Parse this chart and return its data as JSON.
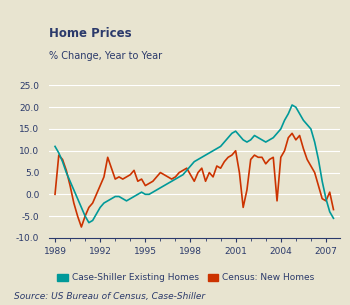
{
  "title": "Home Prices",
  "subtitle": "% Change, Year to Year",
  "source": "Source: US Bureau of Census, Case-Shiller",
  "background_color": "#e8e4d0",
  "title_color": "#2b3a6b",
  "axis_color": "#2b3a6b",
  "grid_color": "#ffffff",
  "ylim": [
    -10.0,
    25.0
  ],
  "yticks": [
    -10.0,
    -5.0,
    0.0,
    5.0,
    10.0,
    15.0,
    20.0,
    25.0
  ],
  "xtick_years": [
    1989,
    1992,
    1995,
    1998,
    2001,
    2004,
    2007
  ],
  "legend_labels": [
    "Case-Shiller Existing Homes",
    "Census: New Homes"
  ],
  "cs_color": "#009999",
  "census_color": "#cc3300",
  "cs_data": [
    [
      1989.0,
      11.0
    ],
    [
      1989.25,
      9.5
    ],
    [
      1989.5,
      7.5
    ],
    [
      1989.75,
      5.0
    ],
    [
      1990.0,
      3.0
    ],
    [
      1990.25,
      1.0
    ],
    [
      1990.5,
      -1.0
    ],
    [
      1990.75,
      -3.0
    ],
    [
      1991.0,
      -5.0
    ],
    [
      1991.25,
      -6.5
    ],
    [
      1991.5,
      -6.0
    ],
    [
      1991.75,
      -4.5
    ],
    [
      1992.0,
      -3.0
    ],
    [
      1992.25,
      -2.0
    ],
    [
      1992.5,
      -1.5
    ],
    [
      1992.75,
      -1.0
    ],
    [
      1993.0,
      -0.5
    ],
    [
      1993.25,
      -0.5
    ],
    [
      1993.5,
      -1.0
    ],
    [
      1993.75,
      -1.5
    ],
    [
      1994.0,
      -1.0
    ],
    [
      1994.25,
      -0.5
    ],
    [
      1994.5,
      0.0
    ],
    [
      1994.75,
      0.5
    ],
    [
      1995.0,
      0.0
    ],
    [
      1995.25,
      0.0
    ],
    [
      1995.5,
      0.5
    ],
    [
      1995.75,
      1.0
    ],
    [
      1996.0,
      1.5
    ],
    [
      1996.25,
      2.0
    ],
    [
      1996.5,
      2.5
    ],
    [
      1996.75,
      3.0
    ],
    [
      1997.0,
      3.5
    ],
    [
      1997.25,
      4.0
    ],
    [
      1997.5,
      4.5
    ],
    [
      1997.75,
      5.5
    ],
    [
      1998.0,
      6.5
    ],
    [
      1998.25,
      7.5
    ],
    [
      1998.5,
      8.0
    ],
    [
      1998.75,
      8.5
    ],
    [
      1999.0,
      9.0
    ],
    [
      1999.25,
      9.5
    ],
    [
      1999.5,
      10.0
    ],
    [
      1999.75,
      10.5
    ],
    [
      2000.0,
      11.0
    ],
    [
      2000.25,
      12.0
    ],
    [
      2000.5,
      13.0
    ],
    [
      2000.75,
      14.0
    ],
    [
      2001.0,
      14.5
    ],
    [
      2001.25,
      13.5
    ],
    [
      2001.5,
      12.5
    ],
    [
      2001.75,
      12.0
    ],
    [
      2002.0,
      12.5
    ],
    [
      2002.25,
      13.5
    ],
    [
      2002.5,
      13.0
    ],
    [
      2002.75,
      12.5
    ],
    [
      2003.0,
      12.0
    ],
    [
      2003.25,
      12.5
    ],
    [
      2003.5,
      13.0
    ],
    [
      2003.75,
      14.0
    ],
    [
      2004.0,
      15.0
    ],
    [
      2004.25,
      17.0
    ],
    [
      2004.5,
      18.5
    ],
    [
      2004.75,
      20.5
    ],
    [
      2005.0,
      20.0
    ],
    [
      2005.25,
      18.5
    ],
    [
      2005.5,
      17.0
    ],
    [
      2005.75,
      16.0
    ],
    [
      2006.0,
      15.0
    ],
    [
      2006.25,
      12.0
    ],
    [
      2006.5,
      8.0
    ],
    [
      2006.75,
      3.0
    ],
    [
      2007.0,
      -1.0
    ],
    [
      2007.25,
      -4.0
    ],
    [
      2007.5,
      -5.5
    ]
  ],
  "census_data": [
    [
      1989.0,
      0.0
    ],
    [
      1989.25,
      9.0
    ],
    [
      1989.5,
      8.0
    ],
    [
      1989.75,
      5.5
    ],
    [
      1990.0,
      2.0
    ],
    [
      1990.25,
      -2.0
    ],
    [
      1990.5,
      -5.0
    ],
    [
      1990.75,
      -7.5
    ],
    [
      1991.0,
      -5.0
    ],
    [
      1991.25,
      -3.0
    ],
    [
      1991.5,
      -2.0
    ],
    [
      1991.75,
      0.0
    ],
    [
      1992.0,
      2.0
    ],
    [
      1992.25,
      4.0
    ],
    [
      1992.5,
      8.5
    ],
    [
      1992.75,
      6.0
    ],
    [
      1993.0,
      3.5
    ],
    [
      1993.25,
      4.0
    ],
    [
      1993.5,
      3.5
    ],
    [
      1993.75,
      4.0
    ],
    [
      1994.0,
      4.5
    ],
    [
      1994.25,
      5.5
    ],
    [
      1994.5,
      3.0
    ],
    [
      1994.75,
      3.5
    ],
    [
      1995.0,
      2.0
    ],
    [
      1995.25,
      2.5
    ],
    [
      1995.5,
      3.0
    ],
    [
      1995.75,
      4.0
    ],
    [
      1996.0,
      5.0
    ],
    [
      1996.25,
      4.5
    ],
    [
      1996.5,
      4.0
    ],
    [
      1996.75,
      3.5
    ],
    [
      1997.0,
      4.0
    ],
    [
      1997.25,
      5.0
    ],
    [
      1997.5,
      5.5
    ],
    [
      1997.75,
      6.0
    ],
    [
      1998.0,
      4.5
    ],
    [
      1998.25,
      3.0
    ],
    [
      1998.5,
      5.0
    ],
    [
      1998.75,
      6.0
    ],
    [
      1999.0,
      3.0
    ],
    [
      1999.25,
      5.0
    ],
    [
      1999.5,
      4.0
    ],
    [
      1999.75,
      6.5
    ],
    [
      2000.0,
      6.0
    ],
    [
      2000.25,
      7.5
    ],
    [
      2000.5,
      8.5
    ],
    [
      2000.75,
      9.0
    ],
    [
      2001.0,
      10.0
    ],
    [
      2001.25,
      5.0
    ],
    [
      2001.5,
      -3.0
    ],
    [
      2001.75,
      1.0
    ],
    [
      2002.0,
      8.0
    ],
    [
      2002.25,
      9.0
    ],
    [
      2002.5,
      8.5
    ],
    [
      2002.75,
      8.5
    ],
    [
      2003.0,
      7.0
    ],
    [
      2003.25,
      8.0
    ],
    [
      2003.5,
      8.5
    ],
    [
      2003.75,
      -1.5
    ],
    [
      2004.0,
      8.5
    ],
    [
      2004.25,
      10.0
    ],
    [
      2004.5,
      13.0
    ],
    [
      2004.75,
      14.0
    ],
    [
      2005.0,
      12.5
    ],
    [
      2005.25,
      13.5
    ],
    [
      2005.5,
      10.5
    ],
    [
      2005.75,
      8.0
    ],
    [
      2006.0,
      6.5
    ],
    [
      2006.25,
      5.0
    ],
    [
      2006.5,
      2.0
    ],
    [
      2006.75,
      -1.0
    ],
    [
      2007.0,
      -1.5
    ],
    [
      2007.25,
      0.5
    ],
    [
      2007.5,
      -3.5
    ]
  ]
}
